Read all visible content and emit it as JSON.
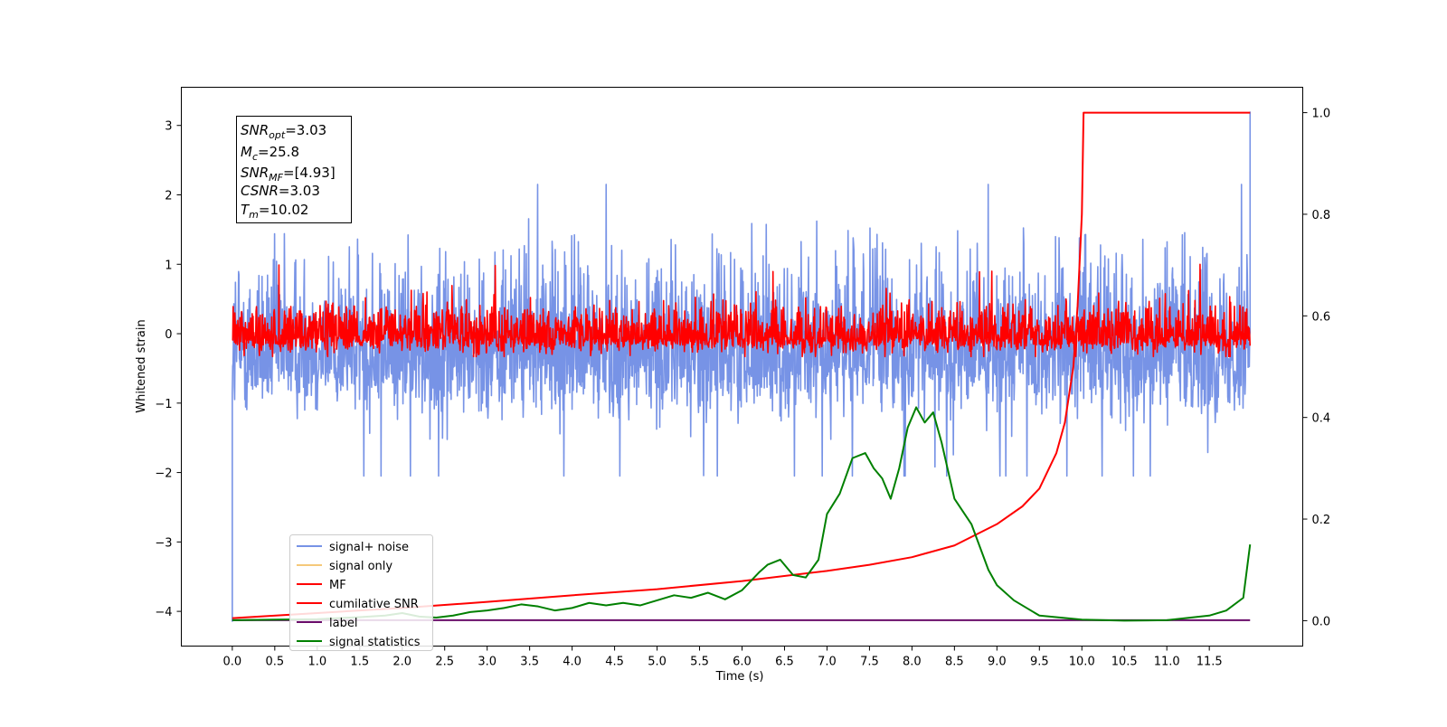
{
  "chart_data": {
    "type": "line",
    "xlabel": "Time (s)",
    "ylabel": "Whitened strain",
    "xlim": [
      -0.6,
      12.6
    ],
    "ylim": [
      -4.5,
      3.55
    ],
    "y2lim": [
      -0.05,
      1.05
    ],
    "x_ticks": [
      0.0,
      0.5,
      1.0,
      1.5,
      2.0,
      2.5,
      3.0,
      3.5,
      4.0,
      4.5,
      5.0,
      5.5,
      6.0,
      6.5,
      7.0,
      7.5,
      8.0,
      8.5,
      9.0,
      9.5,
      10.0,
      10.5,
      11.0,
      11.5
    ],
    "x_tick_labels": [
      "0.0",
      "0.5",
      "1.0",
      "1.5",
      "2.0",
      "2.5",
      "3.0",
      "3.5",
      "4.0",
      "4.5",
      "5.0",
      "5.5",
      "6.0",
      "6.5",
      "7.0",
      "7.5",
      "8.0",
      "8.5",
      "9.0",
      "9.5",
      "10.0",
      "10.5",
      "11.0",
      "11.5"
    ],
    "y_ticks": [
      3,
      2,
      1,
      0,
      -1,
      -2,
      -3,
      -4
    ],
    "y_tick_labels": [
      "3",
      "2",
      "1",
      "0",
      "−1",
      "−2",
      "−3",
      "−4"
    ],
    "y2_ticks": [
      1.0,
      0.8,
      0.6,
      0.4,
      0.2,
      0.0
    ],
    "y2_tick_labels": [
      "1.0",
      "0.8",
      "0.6",
      "0.4",
      "0.2",
      "0.0"
    ],
    "grid": false,
    "legend_position": "bottom-left",
    "legend": [
      {
        "label": "signal+ noise",
        "color": "#7793e6"
      },
      {
        "label": "signal only",
        "color": "#f5c97a"
      },
      {
        "label": "MF",
        "color": "#ff0000"
      },
      {
        "label": "cumilative SNR",
        "color": "#ff0000"
      },
      {
        "label": "label",
        "color": "#6a0d6a"
      },
      {
        "label": "signal statistics",
        "color": "#008000"
      }
    ],
    "info_box": {
      "snr_opt": {
        "sym": "SNR",
        "sub": "opt",
        "val": "=3.03"
      },
      "mc": {
        "sym": "M",
        "sub": "c",
        "val": "=25.8"
      },
      "snr_mf": {
        "sym": "SNR",
        "sub": "MF",
        "val": "=[4.93]"
      },
      "csnr": {
        "sym": "CSNR",
        "sub": "",
        "val": "=3.03"
      },
      "tm": {
        "sym": "T",
        "sub": "m",
        "val": "=10.02"
      }
    },
    "series": [
      {
        "name": "signal+ noise",
        "axis": "left",
        "color": "#7793e6",
        "x_range": [
          0.0,
          11.98
        ],
        "center": -0.3,
        "envelope_low": -1.3,
        "envelope_high": 1.5,
        "max": 2.15,
        "min": -2.05,
        "start_value": -4.15,
        "end_value": 3.2
      },
      {
        "name": "MF",
        "axis": "left",
        "color": "#ff0000",
        "x_range": [
          0.0,
          11.98
        ],
        "center": -0.05,
        "envelope_low": -0.3,
        "envelope_high": 0.55,
        "max": 1.0,
        "min": -0.33
      },
      {
        "name": "cumilative SNR",
        "axis": "right",
        "color": "#ff0000",
        "x": [
          0.0,
          1.0,
          2.0,
          3.0,
          4.0,
          5.0,
          6.0,
          7.0,
          7.5,
          8.0,
          8.5,
          9.0,
          9.3,
          9.5,
          9.7,
          9.8,
          9.9,
          9.95,
          10.0,
          10.02,
          11.98
        ],
        "y": [
          0.005,
          0.015,
          0.025,
          0.037,
          0.05,
          0.062,
          0.078,
          0.098,
          0.11,
          0.125,
          0.148,
          0.19,
          0.225,
          0.26,
          0.33,
          0.39,
          0.5,
          0.62,
          0.8,
          1.0,
          1.0
        ]
      },
      {
        "name": "label",
        "axis": "right",
        "color": "#6a0d6a",
        "x": [
          0.0,
          11.98
        ],
        "y": [
          0.001,
          0.001
        ]
      },
      {
        "name": "signal statistics",
        "axis": "right",
        "color": "#008000",
        "x": [
          0.0,
          0.5,
          1.0,
          1.5,
          1.8,
          2.0,
          2.2,
          2.4,
          2.6,
          2.8,
          3.0,
          3.2,
          3.4,
          3.6,
          3.8,
          4.0,
          4.2,
          4.4,
          4.6,
          4.8,
          5.0,
          5.2,
          5.4,
          5.6,
          5.8,
          6.0,
          6.2,
          6.3,
          6.45,
          6.6,
          6.75,
          6.9,
          7.0,
          7.15,
          7.3,
          7.45,
          7.55,
          7.65,
          7.75,
          7.85,
          7.95,
          8.05,
          8.15,
          8.25,
          8.35,
          8.5,
          8.7,
          8.9,
          9.0,
          9.2,
          9.5,
          10.0,
          10.5,
          11.0,
          11.5,
          11.7,
          11.9,
          11.98
        ],
        "y": [
          0.001,
          0.002,
          0.003,
          0.007,
          0.01,
          0.015,
          0.008,
          0.006,
          0.01,
          0.017,
          0.02,
          0.025,
          0.032,
          0.028,
          0.02,
          0.025,
          0.035,
          0.03,
          0.035,
          0.03,
          0.04,
          0.05,
          0.045,
          0.055,
          0.042,
          0.06,
          0.095,
          0.11,
          0.12,
          0.09,
          0.085,
          0.12,
          0.21,
          0.25,
          0.32,
          0.33,
          0.3,
          0.28,
          0.24,
          0.3,
          0.38,
          0.42,
          0.39,
          0.41,
          0.35,
          0.24,
          0.19,
          0.1,
          0.07,
          0.04,
          0.01,
          0.002,
          0.0,
          0.001,
          0.01,
          0.02,
          0.045,
          0.15
        ]
      }
    ]
  }
}
